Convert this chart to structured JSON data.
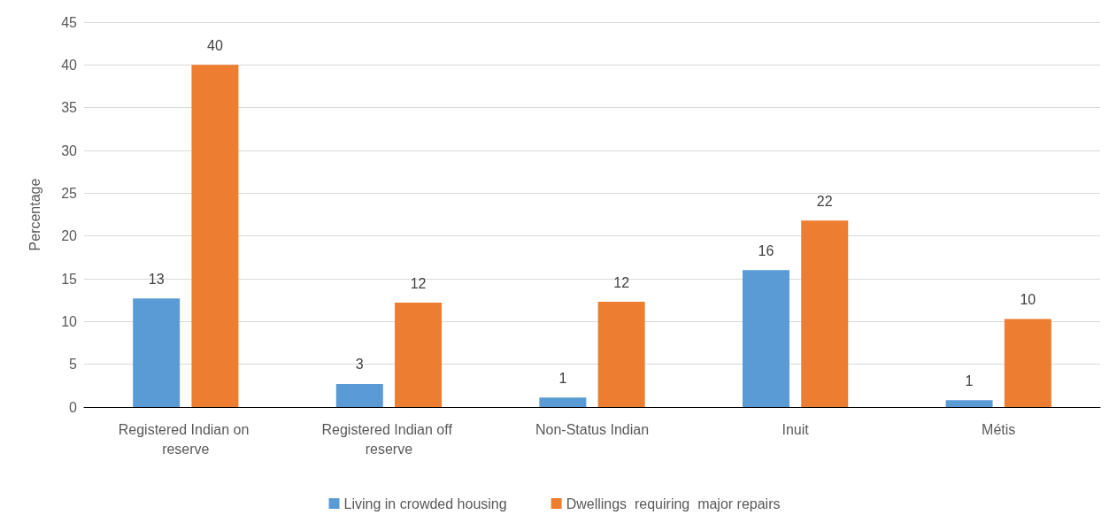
{
  "chart_data": {
    "type": "bar",
    "ylabel": "Percentage",
    "categories": [
      "Registered Indian on reserve",
      "Registered Indian off reserve",
      "Non-Status Indian",
      "Inuit",
      "Métis"
    ],
    "series": [
      {
        "name": "Living in crowded housing",
        "color": "#5b9bd5",
        "values": [
          12.7,
          2.7,
          1.1,
          16,
          0.8
        ],
        "value_labels": [
          "13",
          "3",
          "1",
          "16",
          "1"
        ]
      },
      {
        "name": "Dwellings  requiring  major repairs",
        "color": "#ed7d31",
        "values": [
          40,
          12.2,
          12.3,
          21.8,
          10.3
        ],
        "value_labels": [
          "40",
          "12",
          "12",
          "22",
          "10"
        ]
      }
    ],
    "ylim": [
      0,
      45
    ],
    "yticks": [
      0,
      5,
      10,
      15,
      20,
      25,
      30,
      35,
      40,
      45
    ],
    "grid": "y",
    "legend": "bottom"
  }
}
